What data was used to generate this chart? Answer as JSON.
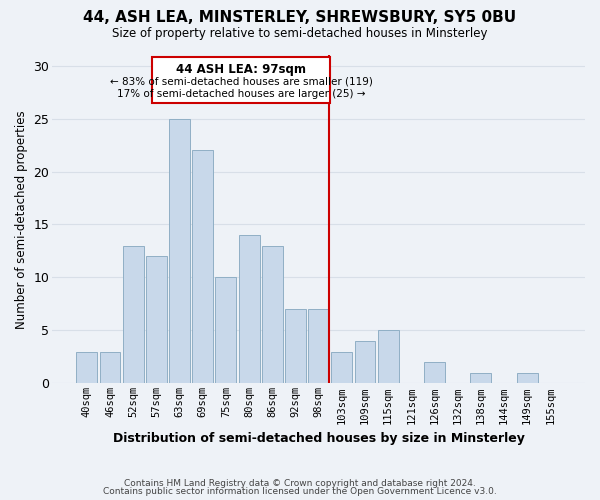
{
  "title": "44, ASH LEA, MINSTERLEY, SHREWSBURY, SY5 0BU",
  "subtitle": "Size of property relative to semi-detached houses in Minsterley",
  "xlabel": "Distribution of semi-detached houses by size in Minsterley",
  "ylabel": "Number of semi-detached properties",
  "footer_line1": "Contains HM Land Registry data © Crown copyright and database right 2024.",
  "footer_line2": "Contains public sector information licensed under the Open Government Licence v3.0.",
  "annotation_title": "44 ASH LEA: 97sqm",
  "annotation_line1": "← 83% of semi-detached houses are smaller (119)",
  "annotation_line2": "17% of semi-detached houses are larger (25) →",
  "bar_labels": [
    "40sqm",
    "46sqm",
    "52sqm",
    "57sqm",
    "63sqm",
    "69sqm",
    "75sqm",
    "80sqm",
    "86sqm",
    "92sqm",
    "98sqm",
    "103sqm",
    "109sqm",
    "115sqm",
    "121sqm",
    "126sqm",
    "132sqm",
    "138sqm",
    "144sqm",
    "149sqm",
    "155sqm"
  ],
  "bar_values": [
    3,
    3,
    13,
    12,
    25,
    22,
    10,
    14,
    13,
    7,
    7,
    3,
    4,
    5,
    0,
    2,
    0,
    1,
    0,
    1,
    0
  ],
  "bar_color": "#c8d8ea",
  "bar_edge_color": "#90afc5",
  "grid_color": "#d8dfe8",
  "background_color": "#eef2f7",
  "annotation_box_color": "#ffffff",
  "property_line_color": "#cc0000",
  "ylim": [
    0,
    31
  ],
  "yticks": [
    0,
    5,
    10,
    15,
    20,
    25,
    30
  ],
  "prop_bar_index": 10
}
